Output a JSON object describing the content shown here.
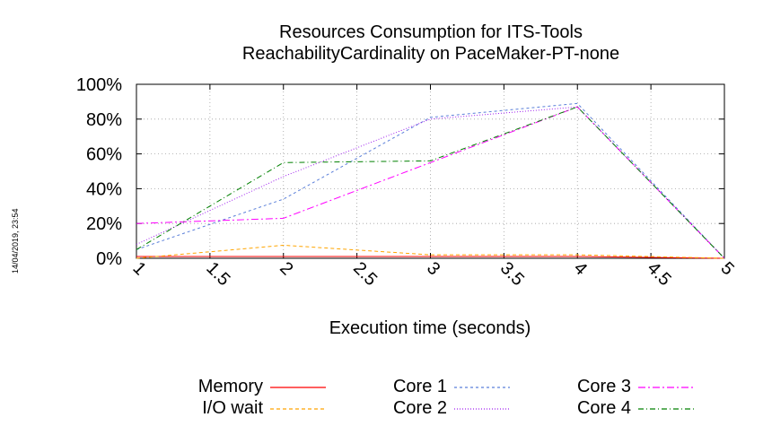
{
  "timestamp": "14/04/2019, 23:54",
  "chart_data": {
    "type": "line",
    "title": [
      "Resources Consumption for ITS-Tools",
      "ReachabilityCardinality on PaceMaker-PT-none"
    ],
    "xlabel": "Execution time (seconds)",
    "ylabel": "",
    "xlim": [
      1,
      5
    ],
    "ylim": [
      0,
      100
    ],
    "x_ticks": [
      "1",
      "1.5",
      "2",
      "2.5",
      "3",
      "3.5",
      "4",
      "4.5",
      "5"
    ],
    "y_ticks": [
      "0%",
      "20%",
      "40%",
      "60%",
      "80%",
      "100%"
    ],
    "grid": true,
    "legend_position": "bottom",
    "series": [
      {
        "name": "Memory",
        "color": "#ff0000",
        "dash": "",
        "x": [
          1,
          2,
          3,
          4,
          5
        ],
        "values": [
          1,
          1,
          1,
          1,
          0
        ]
      },
      {
        "name": "I/O wait",
        "color": "#ffa500",
        "dash": "4,3",
        "x": [
          1,
          2,
          3,
          4,
          5
        ],
        "values": [
          0,
          7.5,
          2,
          2,
          0
        ]
      },
      {
        "name": "Core 1",
        "color": "#5a7fd9",
        "dash": "3,3",
        "x": [
          1,
          2,
          3,
          4,
          5
        ],
        "values": [
          5,
          34,
          81,
          89,
          0
        ]
      },
      {
        "name": "Core 2",
        "color": "#a020f0",
        "dash": "1,2",
        "x": [
          1,
          2,
          3,
          4,
          5
        ],
        "values": [
          8,
          47,
          80,
          87,
          0
        ]
      },
      {
        "name": "Core 3",
        "color": "#ff00ff",
        "dash": "8,3,2,3",
        "x": [
          1,
          2,
          3,
          4,
          5
        ],
        "values": [
          20,
          23,
          55,
          87,
          0
        ]
      },
      {
        "name": "Core 4",
        "color": "#008000",
        "dash": "6,3,1,3",
        "x": [
          1,
          2,
          3,
          4,
          5
        ],
        "values": [
          5,
          55,
          56,
          87,
          0
        ]
      }
    ]
  }
}
